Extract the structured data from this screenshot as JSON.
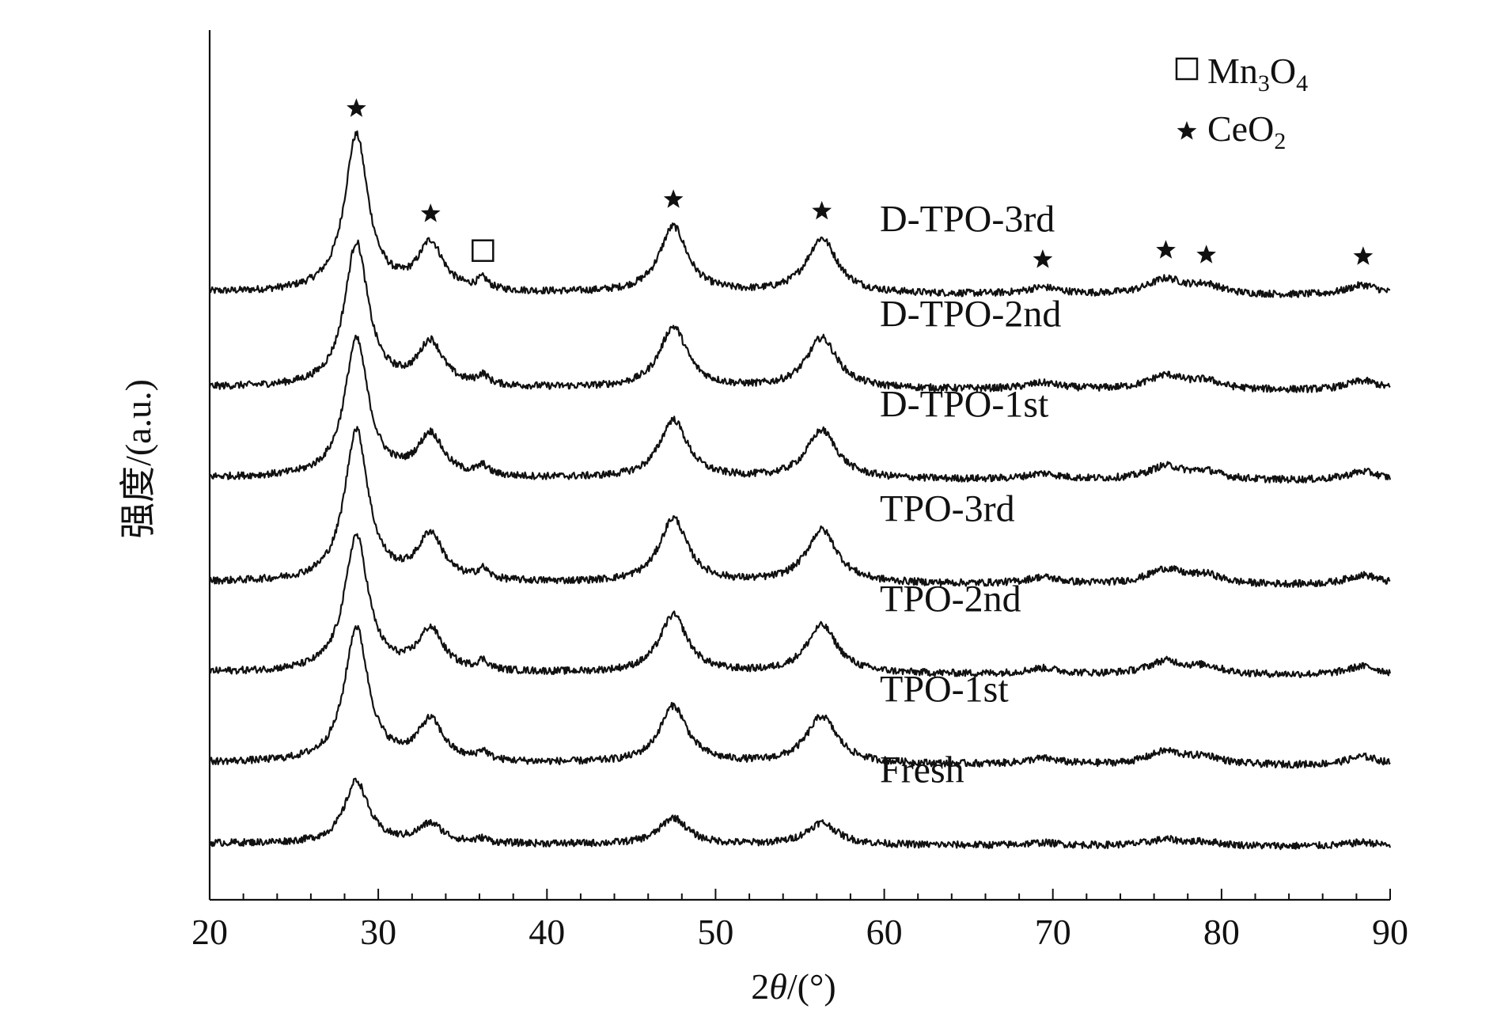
{
  "chart_data": {
    "type": "line",
    "xlabel_prefix": "2",
    "xlabel_symbol": "θ",
    "xlabel_suffix": "/(°)",
    "ylabel": "强度/(a.u.)",
    "xlim": [
      20,
      90
    ],
    "xticks": [
      20,
      30,
      40,
      50,
      60,
      70,
      80,
      90
    ],
    "yticks_shown": false,
    "grid": false,
    "legend": {
      "position": "top-right",
      "entries": [
        {
          "marker": "open-square",
          "name_main": "Mn",
          "sub1": "3",
          "name_mid": "O",
          "sub2": "4"
        },
        {
          "marker": "star",
          "name_main": "CeO",
          "sub1": "2",
          "name_mid": "",
          "sub2": ""
        }
      ]
    },
    "series": [
      {
        "name": "D-TPO-3rd",
        "baseline": 6.05,
        "scale": 1.0
      },
      {
        "name": "D-TPO-2nd",
        "baseline": 5.05,
        "scale": 0.92
      },
      {
        "name": "D-TPO-1st",
        "baseline": 4.1,
        "scale": 0.88
      },
      {
        "name": "TPO-3rd",
        "baseline": 3.0,
        "scale": 0.97
      },
      {
        "name": "TPO-2nd",
        "baseline": 2.05,
        "scale": 0.87
      },
      {
        "name": "TPO-1st",
        "baseline": 1.1,
        "scale": 0.86
      },
      {
        "name": "Fresh",
        "baseline": 0.25,
        "scale": 0.4
      }
    ],
    "peaks": [
      {
        "x": 28.7,
        "height": 1.65,
        "width": 0.85,
        "phase": "CeO2"
      },
      {
        "x": 33.1,
        "height": 0.5,
        "width": 0.9,
        "phase": "CeO2"
      },
      {
        "x": 36.2,
        "height": 0.11,
        "width": 0.4,
        "phase": "Mn3O4"
      },
      {
        "x": 47.5,
        "height": 0.7,
        "width": 1.0,
        "phase": "CeO2"
      },
      {
        "x": 56.3,
        "height": 0.58,
        "width": 1.1,
        "phase": "CeO2"
      },
      {
        "x": 69.4,
        "height": 0.07,
        "width": 1.2,
        "phase": "CeO2"
      },
      {
        "x": 76.7,
        "height": 0.16,
        "width": 1.3,
        "phase": "CeO2"
      },
      {
        "x": 79.1,
        "height": 0.09,
        "width": 1.1,
        "phase": "CeO2"
      },
      {
        "x": 88.4,
        "height": 0.11,
        "width": 1.2,
        "phase": "CeO2"
      }
    ],
    "peak_markers": [
      {
        "x": 28.7,
        "symbol": "star"
      },
      {
        "x": 33.1,
        "symbol": "star"
      },
      {
        "x": 36.2,
        "symbol": "open-square"
      },
      {
        "x": 47.5,
        "symbol": "star"
      },
      {
        "x": 56.3,
        "symbol": "star"
      },
      {
        "x": 69.4,
        "symbol": "star"
      },
      {
        "x": 76.7,
        "symbol": "star"
      },
      {
        "x": 79.1,
        "symbol": "star"
      },
      {
        "x": 88.4,
        "symbol": "star"
      }
    ]
  }
}
